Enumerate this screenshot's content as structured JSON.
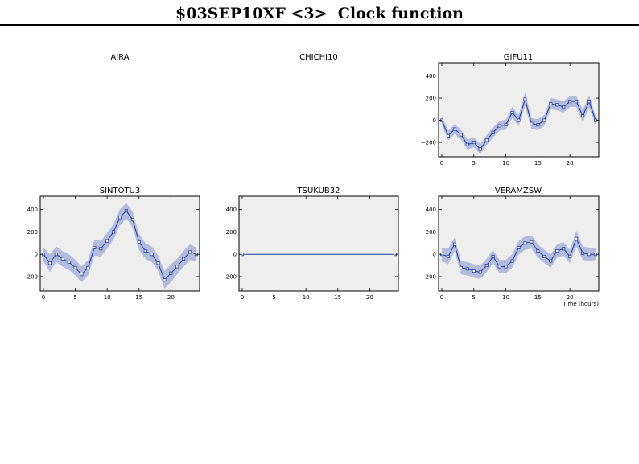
{
  "page": {
    "title": "$03SEP10XF <3>  Clock function",
    "x_axis_label": "Time (hours)"
  },
  "colors": {
    "line": "#1f3a9c",
    "band": "#b3bcdc",
    "plot_background": "#eeeeee"
  },
  "chart_data": [
    {
      "type": "line",
      "title": "AIRA",
      "empty": true
    },
    {
      "type": "line",
      "title": "CHICHI10",
      "empty": true
    },
    {
      "type": "line",
      "title": "GIFU11",
      "xlim": [
        -0.5,
        24.5
      ],
      "ylim": [
        -330,
        520
      ],
      "xticks": [
        0,
        5,
        10,
        15,
        20
      ],
      "yticks": [
        -200,
        0,
        200,
        400
      ],
      "x": [
        0,
        1,
        2,
        3,
        4,
        5,
        6,
        7,
        8,
        9,
        10,
        11,
        12,
        13,
        14,
        15,
        16,
        17,
        18,
        19,
        20,
        21,
        22,
        23,
        24
      ],
      "y": [
        0,
        -140,
        -80,
        -130,
        -220,
        -200,
        -260,
        -180,
        -110,
        -50,
        -40,
        70,
        0,
        190,
        -30,
        -40,
        0,
        150,
        140,
        120,
        170,
        170,
        40,
        170,
        0
      ],
      "error": [
        40,
        45,
        45,
        45,
        45,
        45,
        45,
        45,
        45,
        45,
        45,
        50,
        50,
        60,
        50,
        50,
        50,
        50,
        50,
        50,
        50,
        50,
        55,
        55,
        40
      ]
    },
    {
      "type": "line",
      "title": "SINTOTU3",
      "xlim": [
        -0.5,
        24.5
      ],
      "ylim": [
        -330,
        520
      ],
      "xticks": [
        0,
        5,
        10,
        15,
        20
      ],
      "yticks": [
        -200,
        0,
        200,
        400
      ],
      "x": [
        0,
        1,
        2,
        3,
        4,
        5,
        6,
        7,
        8,
        9,
        10,
        11,
        12,
        13,
        14,
        15,
        16,
        17,
        18,
        19,
        20,
        21,
        22,
        23,
        24
      ],
      "y": [
        0,
        -80,
        0,
        -40,
        -70,
        -120,
        -180,
        -120,
        60,
        50,
        120,
        200,
        330,
        390,
        310,
        110,
        30,
        0,
        -80,
        -230,
        -170,
        -110,
        -40,
        20,
        0
      ],
      "error": [
        60,
        80,
        70,
        70,
        70,
        70,
        70,
        70,
        70,
        70,
        70,
        70,
        70,
        70,
        70,
        70,
        70,
        70,
        70,
        80,
        80,
        70,
        70,
        70,
        60
      ]
    },
    {
      "type": "line",
      "title": "TSUKUB32",
      "xlim": [
        -0.5,
        24.5
      ],
      "ylim": [
        -330,
        520
      ],
      "xticks": [
        0,
        5,
        10,
        15,
        20
      ],
      "yticks": [
        -200,
        0,
        200,
        400
      ],
      "x": [
        0,
        24
      ],
      "y": [
        0,
        0
      ],
      "error": [
        0,
        0
      ]
    },
    {
      "type": "line",
      "title": "VERAMZSW",
      "xlim": [
        -0.5,
        24.5
      ],
      "ylim": [
        -330,
        520
      ],
      "xticks": [
        0,
        5,
        10,
        15,
        20
      ],
      "yticks": [
        -200,
        0,
        200,
        400
      ],
      "x": [
        0,
        1,
        2,
        3,
        4,
        5,
        6,
        7,
        8,
        9,
        10,
        11,
        12,
        13,
        14,
        15,
        16,
        17,
        18,
        19,
        20,
        21,
        22,
        23,
        24
      ],
      "y": [
        0,
        -20,
        90,
        -120,
        -130,
        -150,
        -160,
        -100,
        -20,
        -110,
        -110,
        -60,
        60,
        100,
        110,
        30,
        -20,
        -60,
        30,
        50,
        -20,
        140,
        10,
        0,
        0
      ],
      "error": [
        60,
        70,
        60,
        60,
        60,
        60,
        60,
        60,
        60,
        60,
        60,
        60,
        60,
        60,
        60,
        60,
        60,
        60,
        60,
        60,
        60,
        70,
        60,
        60,
        50
      ]
    }
  ]
}
